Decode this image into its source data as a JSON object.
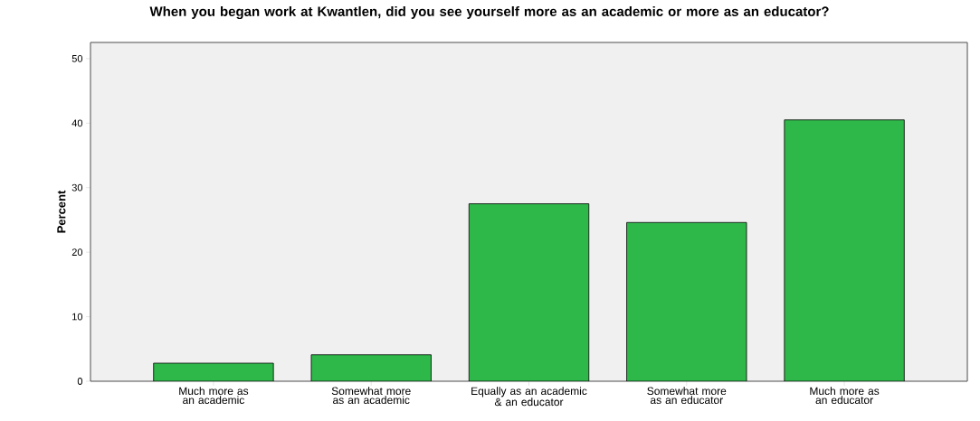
{
  "chart_data": {
    "type": "bar",
    "title": "When you began work at Kwantlen, did you see yourself more as an academic or more as an educator?",
    "ylabel": "Percent",
    "categories": [
      "Much more as an academic",
      "Somewhat more as an academic",
      "Equally as an academic & an educator",
      "Somewhat more as an educator",
      "Much more as an educator"
    ],
    "values": [
      2.8,
      4.1,
      27.5,
      24.6,
      40.5
    ],
    "color": "#2fb84a",
    "ylim": [
      0,
      52.5
    ],
    "yticks": [
      0,
      10,
      20,
      30,
      40,
      50
    ],
    "grid": false
  }
}
